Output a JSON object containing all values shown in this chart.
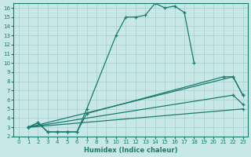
{
  "xlabel": "Humidex (Indice chaleur)",
  "bg_color": "#c8e8e8",
  "grid_color": "#a8cccc",
  "line_color": "#1a7a6e",
  "xlim": [
    -0.5,
    23.5
  ],
  "ylim": [
    2,
    16.5
  ],
  "xticks": [
    0,
    1,
    2,
    3,
    4,
    5,
    6,
    7,
    8,
    9,
    10,
    11,
    12,
    13,
    14,
    15,
    16,
    17,
    18,
    19,
    20,
    21,
    22,
    23
  ],
  "yticks": [
    2,
    3,
    4,
    5,
    6,
    7,
    8,
    9,
    10,
    11,
    12,
    13,
    14,
    15,
    16
  ],
  "curve1_x": [
    1,
    2,
    3,
    4,
    5,
    6,
    7,
    10,
    11,
    12,
    13,
    14,
    15,
    16,
    17,
    18
  ],
  "curve1_y": [
    3,
    3.5,
    2.5,
    2.5,
    2.5,
    2.5,
    5,
    13,
    15,
    15,
    15.2,
    16.5,
    16,
    16.2,
    15.5,
    10
  ],
  "curve2_x": [
    1,
    2,
    3,
    4,
    5,
    6,
    7,
    21,
    22,
    23
  ],
  "curve2_y": [
    3,
    3.5,
    2.5,
    2.5,
    2.5,
    2.5,
    4.5,
    8.5,
    8.5,
    6.5
  ],
  "line3_x": [
    1,
    22,
    23
  ],
  "line3_y": [
    3,
    8.5,
    6.5
  ],
  "line4_x": [
    1,
    22,
    23
  ],
  "line4_y": [
    3,
    6.5,
    5.5
  ],
  "line5_x": [
    1,
    23
  ],
  "line5_y": [
    3,
    5.0
  ]
}
